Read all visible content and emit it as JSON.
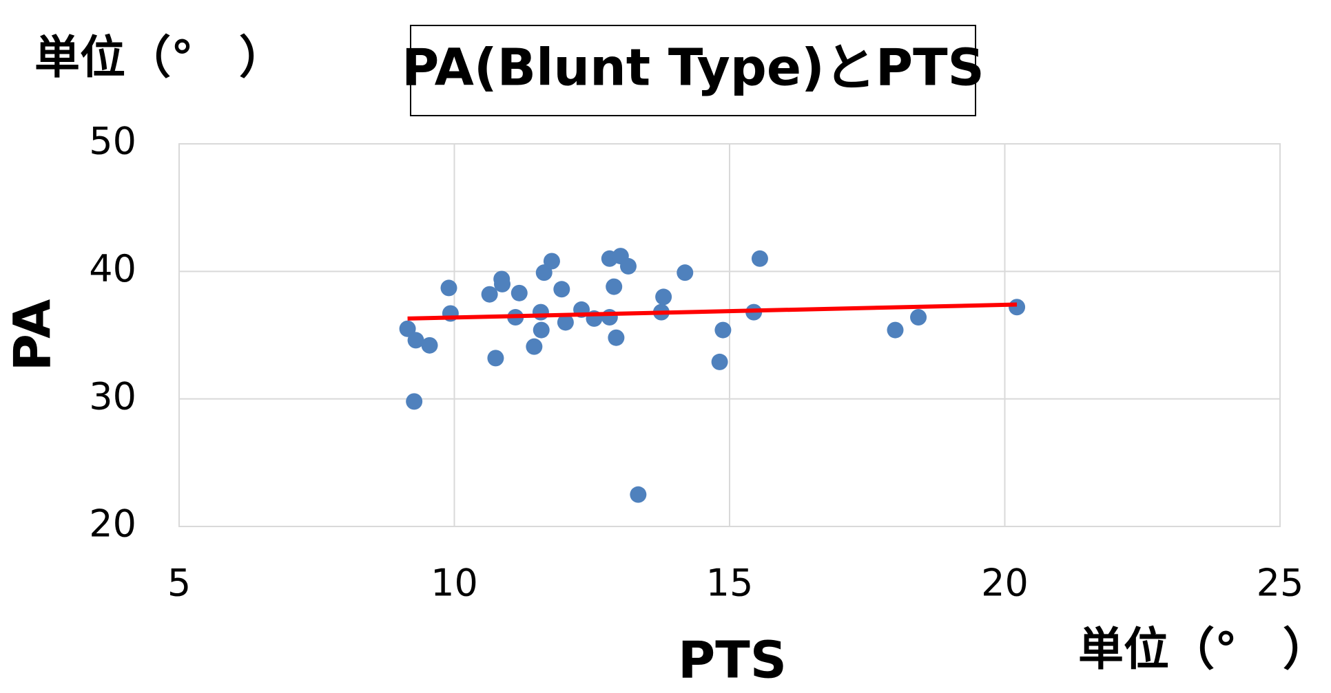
{
  "chart_data": {
    "type": "scatter",
    "title": "PA(Blunt Type)とPTS",
    "y_unit": "単位（°　）",
    "x_unit": "単位（°　）",
    "ylabel": "PA",
    "xlabel": "PTS",
    "color": "#4f81bd",
    "grid": true,
    "xlim": [
      5,
      25
    ],
    "xticks": [
      5,
      10,
      15,
      20,
      25
    ],
    "ylim": [
      20,
      50
    ],
    "yticks": [
      20,
      30,
      40,
      50
    ],
    "x": [
      9.15,
      9.3,
      9.55,
      9.27,
      9.9,
      9.93,
      10.64,
      10.75,
      10.86,
      10.87,
      11.11,
      11.18,
      11.45,
      11.57,
      11.58,
      11.63,
      11.77,
      11.95,
      12.02,
      12.31,
      12.54,
      12.82,
      12.82,
      12.9,
      12.94,
      13.02,
      13.16,
      13.34,
      13.76,
      13.8,
      14.19,
      14.82,
      14.88,
      15.44,
      15.55,
      18.01,
      18.43,
      20.22
    ],
    "values": [
      35.5,
      34.6,
      34.2,
      29.8,
      38.7,
      36.7,
      38.2,
      33.2,
      39.4,
      39.0,
      36.4,
      38.3,
      34.1,
      36.8,
      35.4,
      39.9,
      40.8,
      38.6,
      36.0,
      37.0,
      36.3,
      41.0,
      36.4,
      38.8,
      34.8,
      41.2,
      40.4,
      22.5,
      36.8,
      38.0,
      39.9,
      32.9,
      35.4,
      36.8,
      41.0,
      35.4,
      36.4,
      37.2
    ],
    "trendline": {
      "x": [
        9.15,
        20.22
      ],
      "values": [
        36.3,
        37.4
      ],
      "color": "#ff0000"
    }
  }
}
